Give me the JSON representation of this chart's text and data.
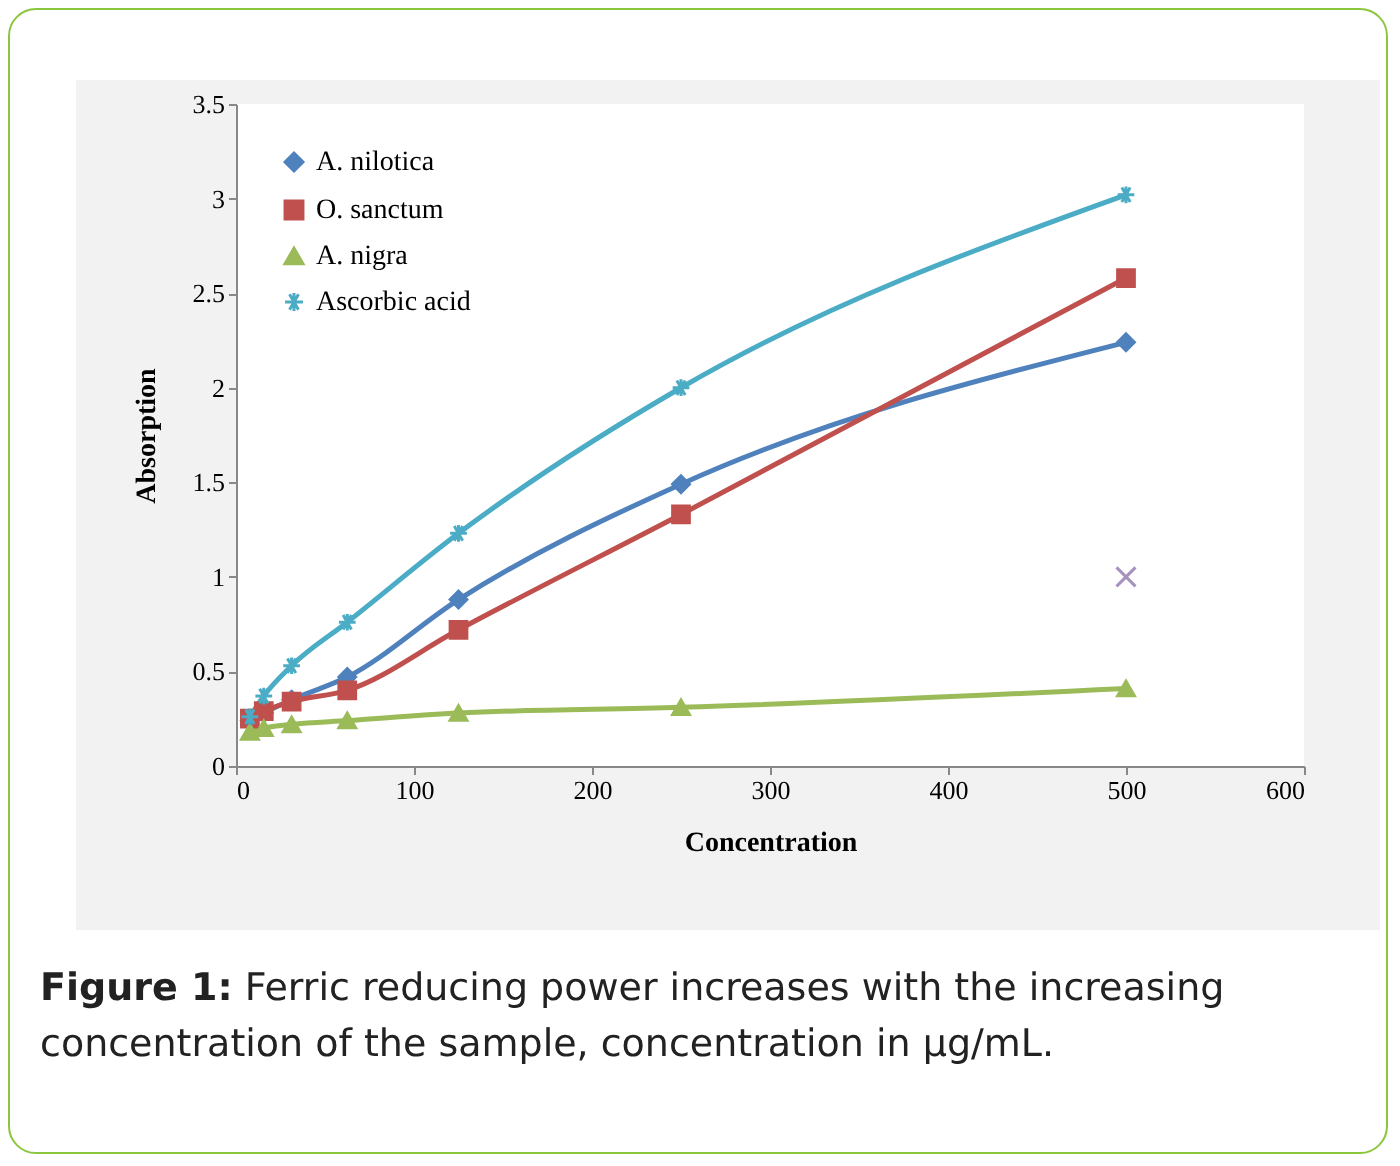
{
  "chart_data": {
    "type": "line",
    "xlabel": "Concentration",
    "ylabel": "Absorption",
    "x": [
      7.8,
      15.6,
      31.25,
      62.5,
      125,
      250,
      500
    ],
    "series": [
      {
        "name": "A. nilotica",
        "color": "#4f81bd",
        "marker": "diamond",
        "values": [
          0.24,
          0.28,
          0.35,
          0.47,
          0.88,
          1.49,
          2.24
        ]
      },
      {
        "name": "O. sanctum",
        "color": "#c0504d",
        "marker": "square",
        "values": [
          0.25,
          0.29,
          0.34,
          0.4,
          0.72,
          1.33,
          2.58
        ]
      },
      {
        "name": "A. nigra",
        "color": "#9bbb59",
        "marker": "triangle",
        "values": [
          0.18,
          0.2,
          0.22,
          0.24,
          0.28,
          0.31,
          0.41
        ]
      },
      {
        "name": "Ascorbic acid",
        "color": "#4bacc6",
        "marker": "cross",
        "values": [
          0.26,
          0.37,
          0.53,
          0.76,
          1.23,
          2.0,
          3.02
        ]
      },
      {
        "type": "scatter",
        "color": "#8064a2",
        "marker": "cross",
        "x": [
          500
        ],
        "values": [
          1.0
        ]
      }
    ],
    "xlim": [
      0,
      600
    ],
    "xticks": [
      0,
      100,
      200,
      300,
      400,
      500,
      600
    ],
    "ylim": [
      0,
      3.5
    ],
    "yticks": [
      0,
      0.5,
      1,
      1.5,
      2,
      2.5,
      3,
      3.5
    ],
    "grid": false,
    "legend": "top left",
    "annotations": [
      "Figure 1: Ferric reducing power increases with the increasing concentration of the sample, concentration in µg/mL."
    ]
  }
}
